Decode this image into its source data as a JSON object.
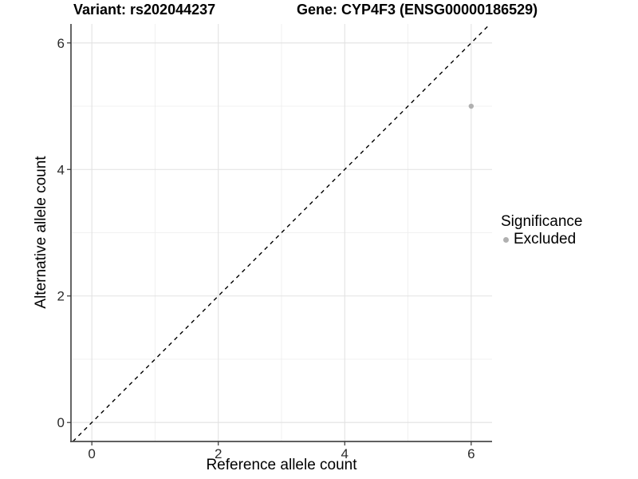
{
  "chart_data": {
    "type": "scatter",
    "title_left": "Variant: rs202044237",
    "title_right": "Gene: CYP4F3 (ENSG00000186529)",
    "xlabel": "Reference allele count",
    "ylabel": "Alternative allele count",
    "xlim": [
      -0.33,
      6.33
    ],
    "ylim": [
      -0.3,
      6.3
    ],
    "x_ticks": [
      0,
      2,
      4,
      6
    ],
    "y_ticks": [
      0,
      2,
      4,
      6
    ],
    "x_minor_ticks": [
      1,
      3,
      5
    ],
    "y_minor_ticks": [
      1,
      3,
      5
    ],
    "grid": true,
    "reference_line": {
      "type": "abline",
      "slope": 1,
      "intercept": 0,
      "style": "dashed",
      "color": "#000000"
    },
    "series": [
      {
        "name": "Excluded",
        "color": "#b0b0b0",
        "point_radius": 3.2,
        "points": [
          {
            "x": 6,
            "y": 5
          }
        ]
      }
    ],
    "legend": {
      "title": "Significance",
      "position": "right",
      "items": [
        {
          "label": "Excluded",
          "color": "#b0b0b0"
        }
      ]
    },
    "colors": {
      "background": "#ffffff",
      "grid_major": "#e2e2e2",
      "grid_minor": "#ececec",
      "axis_line": "#4a4a4a",
      "tick_mark": "#333333",
      "tick_label": "#2b2b2b",
      "title_text": "#000000"
    }
  }
}
